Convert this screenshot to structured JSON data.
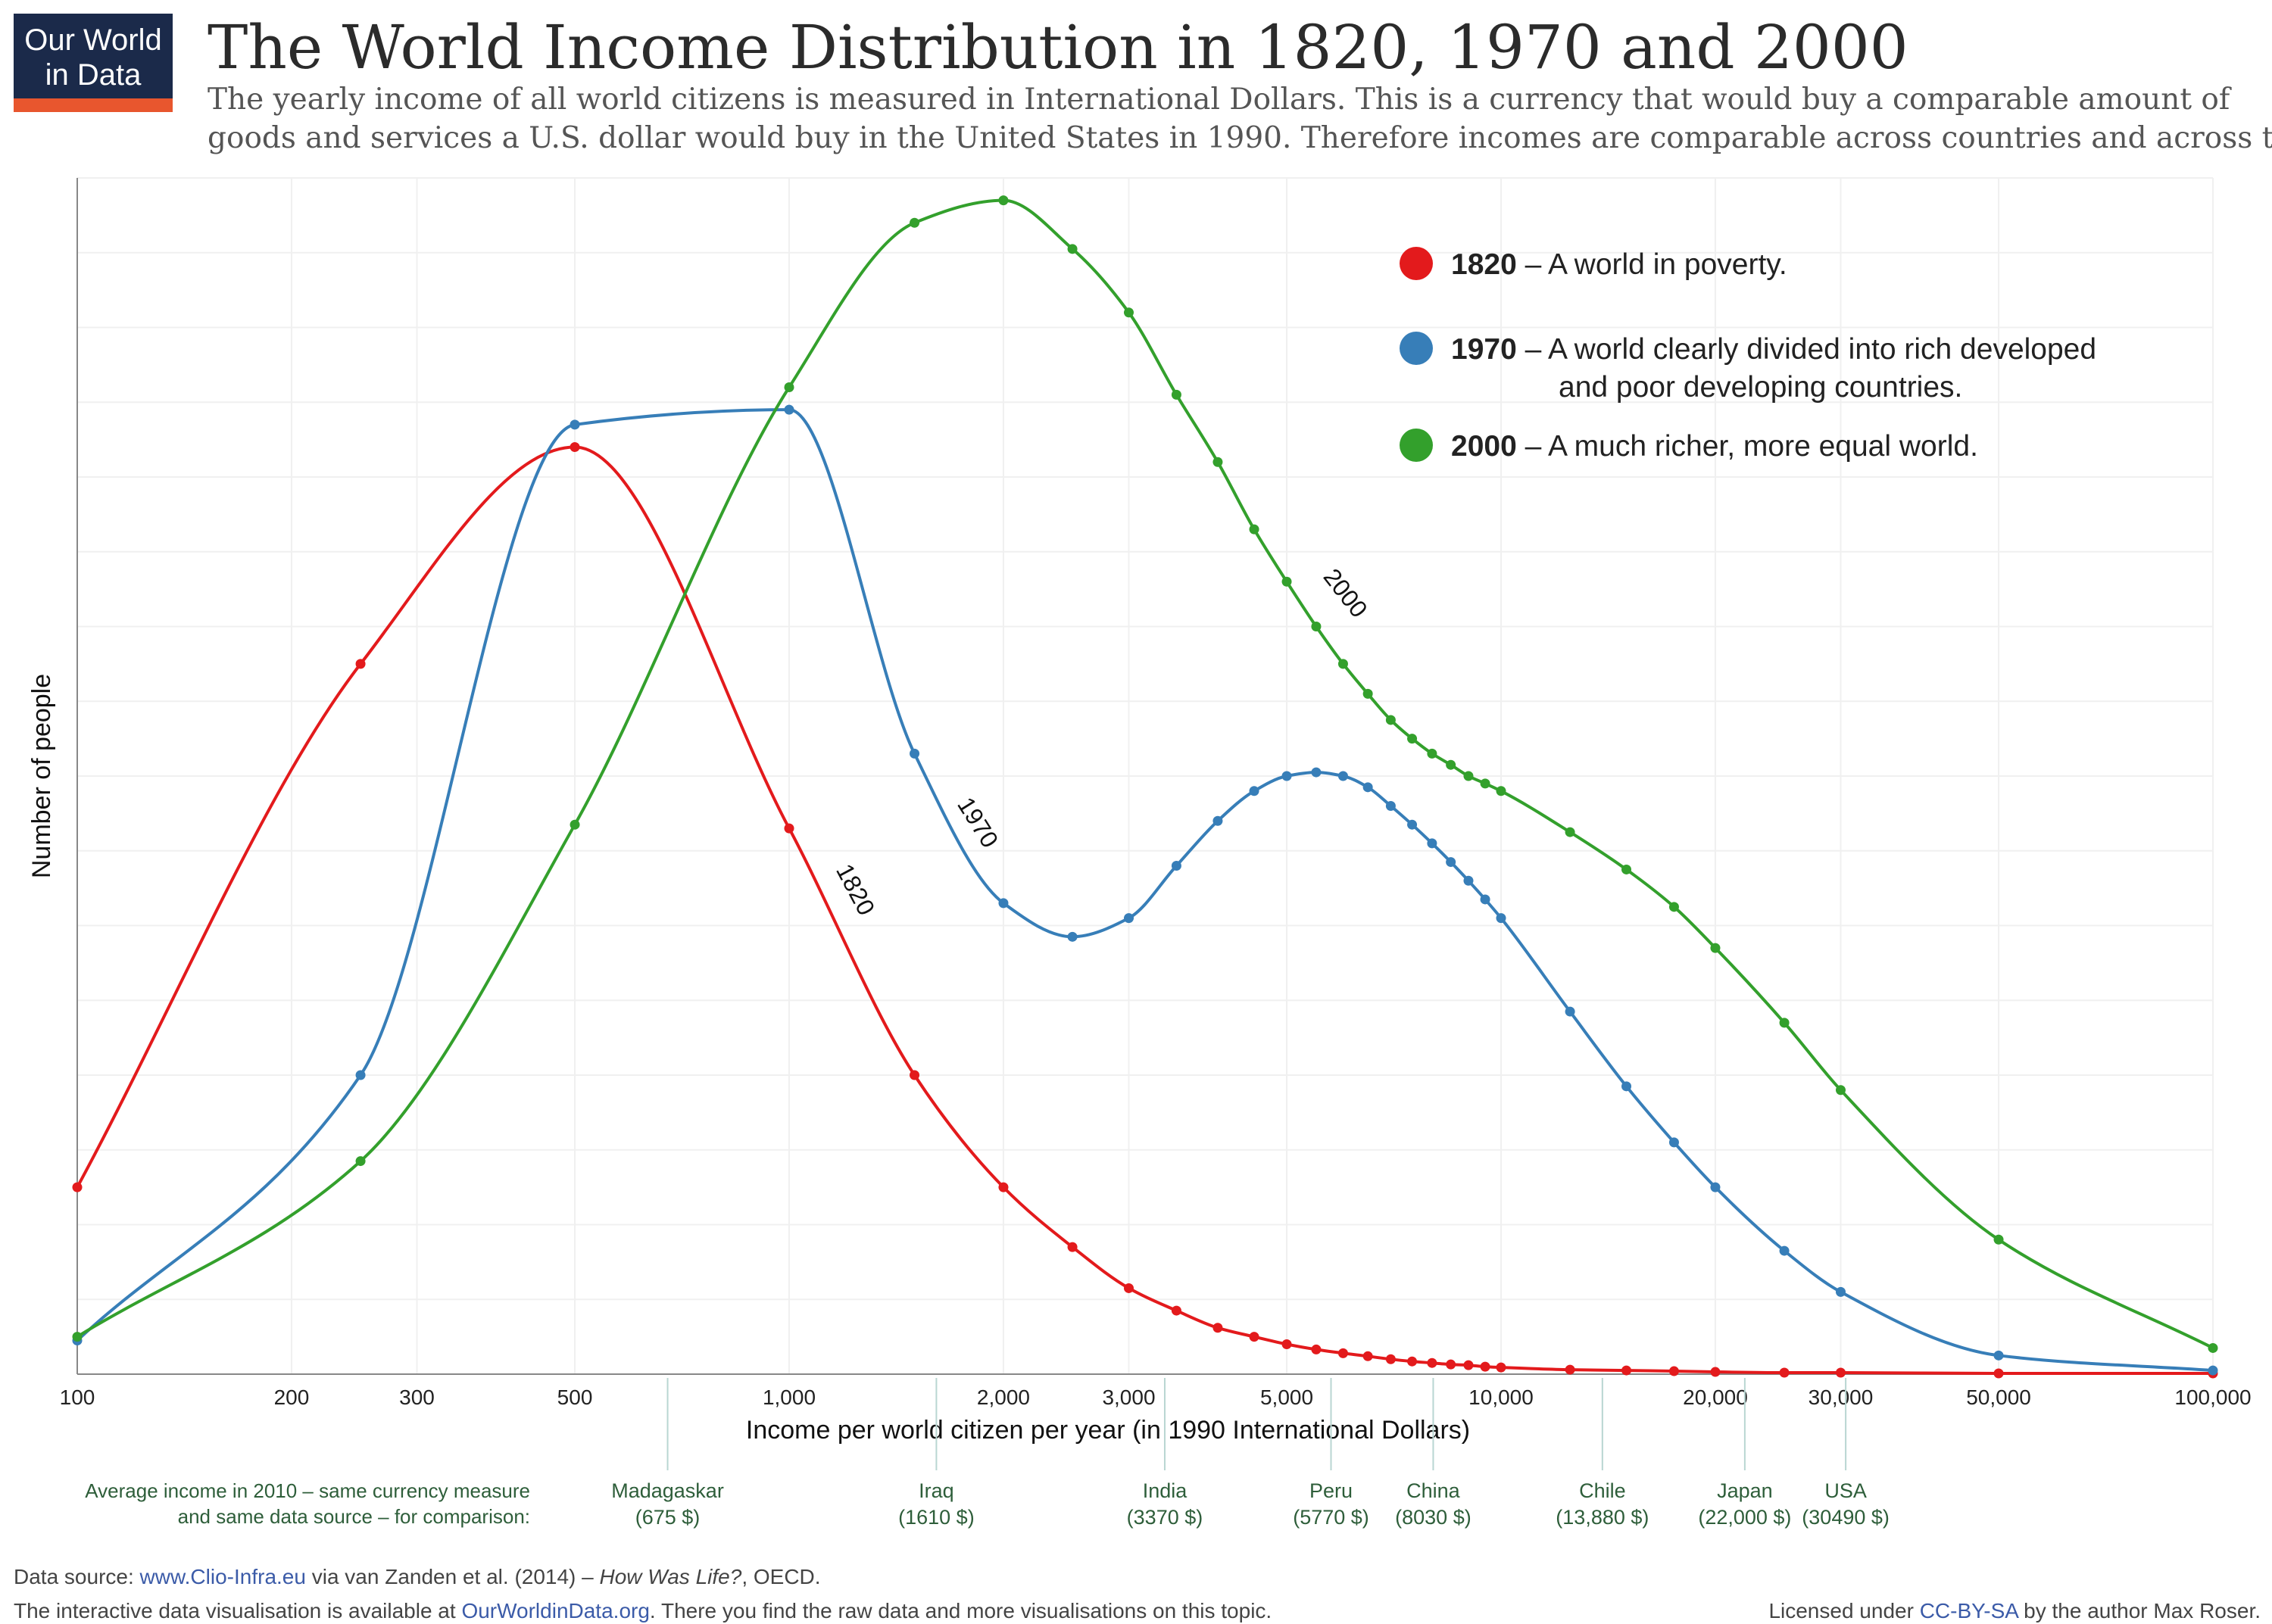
{
  "logo": {
    "line1": "Our World",
    "line2": "in Data",
    "bg": "#1b2a4a",
    "stripe": "#e8562e"
  },
  "title": "The World Income Distribution in 1820, 1970 and 2000",
  "subtitle": [
    "The yearly income of all world citizens is measured in International Dollars. This is a currency that would buy a comparable amount of",
    "goods and services a U.S. dollar would buy in the United States in 1990. Therefore incomes are comparable across countries and across time."
  ],
  "colors": {
    "1820": "#e31a1c",
    "1970": "#377eb8",
    "2000": "#33a02c"
  },
  "legend": [
    {
      "year": "1820",
      "text": "– A world in poverty."
    },
    {
      "year": "1970",
      "text": "– A world clearly divided into rich developed",
      "text2": "and poor developing countries."
    },
    {
      "year": "2000",
      "text": "– A much richer, more equal world."
    }
  ],
  "curve_labels": {
    "1820": "1820",
    "1970": "1970",
    "2000": "2000"
  },
  "comparison": {
    "note_line1": "Average income in 2010 – same currency measure",
    "note_line2": "and same data source – for comparison:",
    "countries": [
      {
        "name": "Madagaskar",
        "value_label": "(675 $)",
        "income": 675
      },
      {
        "name": "Iraq",
        "value_label": "(1610 $)",
        "income": 1610
      },
      {
        "name": "India",
        "value_label": "(3370 $)",
        "income": 3370
      },
      {
        "name": "Peru",
        "value_label": "(5770 $)",
        "income": 5770
      },
      {
        "name": "China",
        "value_label": "(8030 $)",
        "income": 8030
      },
      {
        "name": "Chile",
        "value_label": "(13,880 $)",
        "income": 13880
      },
      {
        "name": "Japan",
        "value_label": "(22,000 $)",
        "income": 22000
      },
      {
        "name": "USA",
        "value_label": "(30490 $)",
        "income": 30490
      }
    ]
  },
  "footer": {
    "source_prefix": "Data source:",
    "source_link": "www.Clio-Infra.eu",
    "source_mid": " via van Zanden et al. (2014) – ",
    "source_book": "How Was Life?",
    "source_end": ", OECD.",
    "line2_prefix": "The interactive data visualisation is available at ",
    "line2_link": "OurWorldinData.org",
    "line2_end": ". There you find the raw data and more visualisations on this topic.",
    "license_prefix": "Licensed under ",
    "license_link": "CC-BY-SA",
    "license_end": " by the author Max Roser."
  },
  "chart_data": {
    "type": "line",
    "xlabel": "Income per world citizen per year (in 1990 International Dollars)",
    "ylabel": "Number of people",
    "x_scale": "log",
    "xlim": [
      100,
      100000
    ],
    "ylim": [
      0,
      16
    ],
    "x_ticks": [
      {
        "value": 100,
        "label": "100"
      },
      {
        "value": 200,
        "label": "200"
      },
      {
        "value": 300,
        "label": "300"
      },
      {
        "value": 500,
        "label": "500"
      },
      {
        "value": 1000,
        "label": "1,000"
      },
      {
        "value": 2000,
        "label": "2,000"
      },
      {
        "value": 3000,
        "label": "3,000"
      },
      {
        "value": 5000,
        "label": "5,000"
      },
      {
        "value": 10000,
        "label": "10,000"
      },
      {
        "value": 20000,
        "label": "20,000"
      },
      {
        "value": 30000,
        "label": "30,000"
      },
      {
        "value": 50000,
        "label": "50,000"
      },
      {
        "value": 100000,
        "label": "100,000"
      }
    ],
    "grid": true,
    "legend_position": "top-right",
    "series": [
      {
        "name": "1820",
        "points": [
          [
            100,
            2.5
          ],
          [
            250,
            9.5
          ],
          [
            500,
            12.4
          ],
          [
            1000,
            7.3
          ],
          [
            1500,
            4.0
          ],
          [
            2000,
            2.5
          ],
          [
            2500,
            1.7
          ],
          [
            3000,
            1.15
          ],
          [
            3500,
            0.85
          ],
          [
            4000,
            0.62
          ],
          [
            4500,
            0.5
          ],
          [
            5000,
            0.4
          ],
          [
            5500,
            0.33
          ],
          [
            6000,
            0.28
          ],
          [
            6500,
            0.24
          ],
          [
            7000,
            0.2
          ],
          [
            7500,
            0.17
          ],
          [
            8000,
            0.15
          ],
          [
            8500,
            0.13
          ],
          [
            9000,
            0.12
          ],
          [
            9500,
            0.1
          ],
          [
            10000,
            0.09
          ],
          [
            12500,
            0.06
          ],
          [
            15000,
            0.05
          ],
          [
            17500,
            0.04
          ],
          [
            20000,
            0.03
          ],
          [
            25000,
            0.02
          ],
          [
            30000,
            0.02
          ],
          [
            50000,
            0.01
          ],
          [
            100000,
            0.01
          ]
        ]
      },
      {
        "name": "1970",
        "points": [
          [
            100,
            0.45
          ],
          [
            250,
            4.0
          ],
          [
            500,
            12.7
          ],
          [
            1000,
            12.9
          ],
          [
            1500,
            8.3
          ],
          [
            2000,
            6.3
          ],
          [
            2500,
            5.85
          ],
          [
            3000,
            6.1
          ],
          [
            3500,
            6.8
          ],
          [
            4000,
            7.4
          ],
          [
            4500,
            7.8
          ],
          [
            5000,
            8.0
          ],
          [
            5500,
            8.05
          ],
          [
            6000,
            8.0
          ],
          [
            6500,
            7.85
          ],
          [
            7000,
            7.6
          ],
          [
            7500,
            7.35
          ],
          [
            8000,
            7.1
          ],
          [
            8500,
            6.85
          ],
          [
            9000,
            6.6
          ],
          [
            9500,
            6.35
          ],
          [
            10000,
            6.1
          ],
          [
            12500,
            4.85
          ],
          [
            15000,
            3.85
          ],
          [
            17500,
            3.1
          ],
          [
            20000,
            2.5
          ],
          [
            25000,
            1.65
          ],
          [
            30000,
            1.1
          ],
          [
            50000,
            0.25
          ],
          [
            100000,
            0.05
          ]
        ]
      },
      {
        "name": "2000",
        "points": [
          [
            100,
            0.5
          ],
          [
            250,
            2.85
          ],
          [
            500,
            7.35
          ],
          [
            1000,
            13.2
          ],
          [
            1500,
            15.4
          ],
          [
            2000,
            15.7
          ],
          [
            2500,
            15.05
          ],
          [
            3000,
            14.2
          ],
          [
            3500,
            13.1
          ],
          [
            4000,
            12.2
          ],
          [
            4500,
            11.3
          ],
          [
            5000,
            10.6
          ],
          [
            5500,
            10.0
          ],
          [
            6000,
            9.5
          ],
          [
            6500,
            9.1
          ],
          [
            7000,
            8.75
          ],
          [
            7500,
            8.5
          ],
          [
            8000,
            8.3
          ],
          [
            8500,
            8.15
          ],
          [
            9000,
            8.0
          ],
          [
            9500,
            7.9
          ],
          [
            10000,
            7.8
          ],
          [
            12500,
            7.25
          ],
          [
            15000,
            6.75
          ],
          [
            17500,
            6.25
          ],
          [
            20000,
            5.7
          ],
          [
            25000,
            4.7
          ],
          [
            30000,
            3.8
          ],
          [
            50000,
            1.8
          ],
          [
            100000,
            0.35
          ]
        ]
      }
    ]
  }
}
